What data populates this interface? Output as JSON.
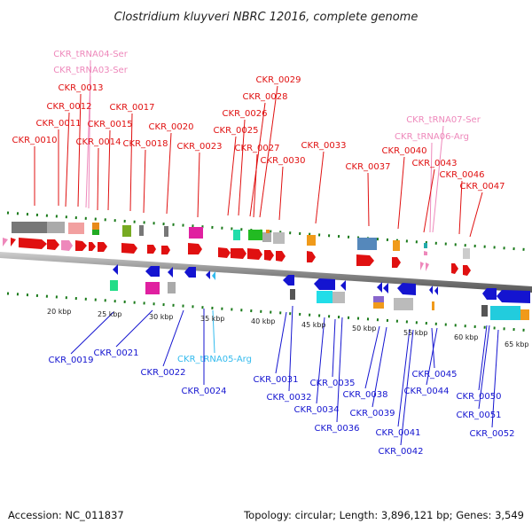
{
  "title": "Clostridium kluyveri NBRC 12016, complete genome",
  "footer": {
    "accession": "Accession: NC_011837",
    "summary": "Topology: circular; Length: 3,896,121 bp; Genes: 3,549"
  },
  "colors": {
    "protein_gene": "#e01010",
    "trna_gene": "#ee88bb",
    "reverse_gene": "#1414d0",
    "reverse_trna": "#33bbee",
    "backbone": "#777777",
    "tick": "#1a7a1a"
  },
  "kbp_ticks": [
    "20 kbp",
    "25 kbp",
    "30 kbp",
    "35 kbp",
    "40 kbp",
    "45 kbp",
    "50 kbp",
    "55 kbp",
    "60 kbp",
    "65 kbp"
  ],
  "forward_labels": [
    "CKR_tRNA04-Ser",
    "CKR_tRNA03-Ser",
    "CKR_0013",
    "CKR_0012",
    "CKR_0011",
    "CKR_0010",
    "CKR_0017",
    "CKR_0015",
    "CKR_0014",
    "CKR_0018",
    "CKR_0020",
    "CKR_0023",
    "CKR_0029",
    "CKR_0028",
    "CKR_0026",
    "CKR_0025",
    "CKR_0027",
    "CKR_0030",
    "CKR_0033",
    "CKR_tRNA07-Ser",
    "CKR_tRNA06-Arg",
    "CKR_0040",
    "CKR_0037",
    "CKR_0043",
    "CKR_0046",
    "CKR_0047"
  ],
  "reverse_labels": [
    "CKR_0019",
    "CKR_0021",
    "CKR_0022",
    "CKR_tRNA05-Arg",
    "CKR_0024",
    "CKR_0031",
    "CKR_0032",
    "CKR_0034",
    "CKR_0035",
    "CKR_0036",
    "CKR_0038",
    "CKR_0039",
    "CKR_0041",
    "CKR_0042",
    "CKR_0045",
    "CKR_0044",
    "CKR_0050",
    "CKR_0051",
    "CKR_0052"
  ]
}
